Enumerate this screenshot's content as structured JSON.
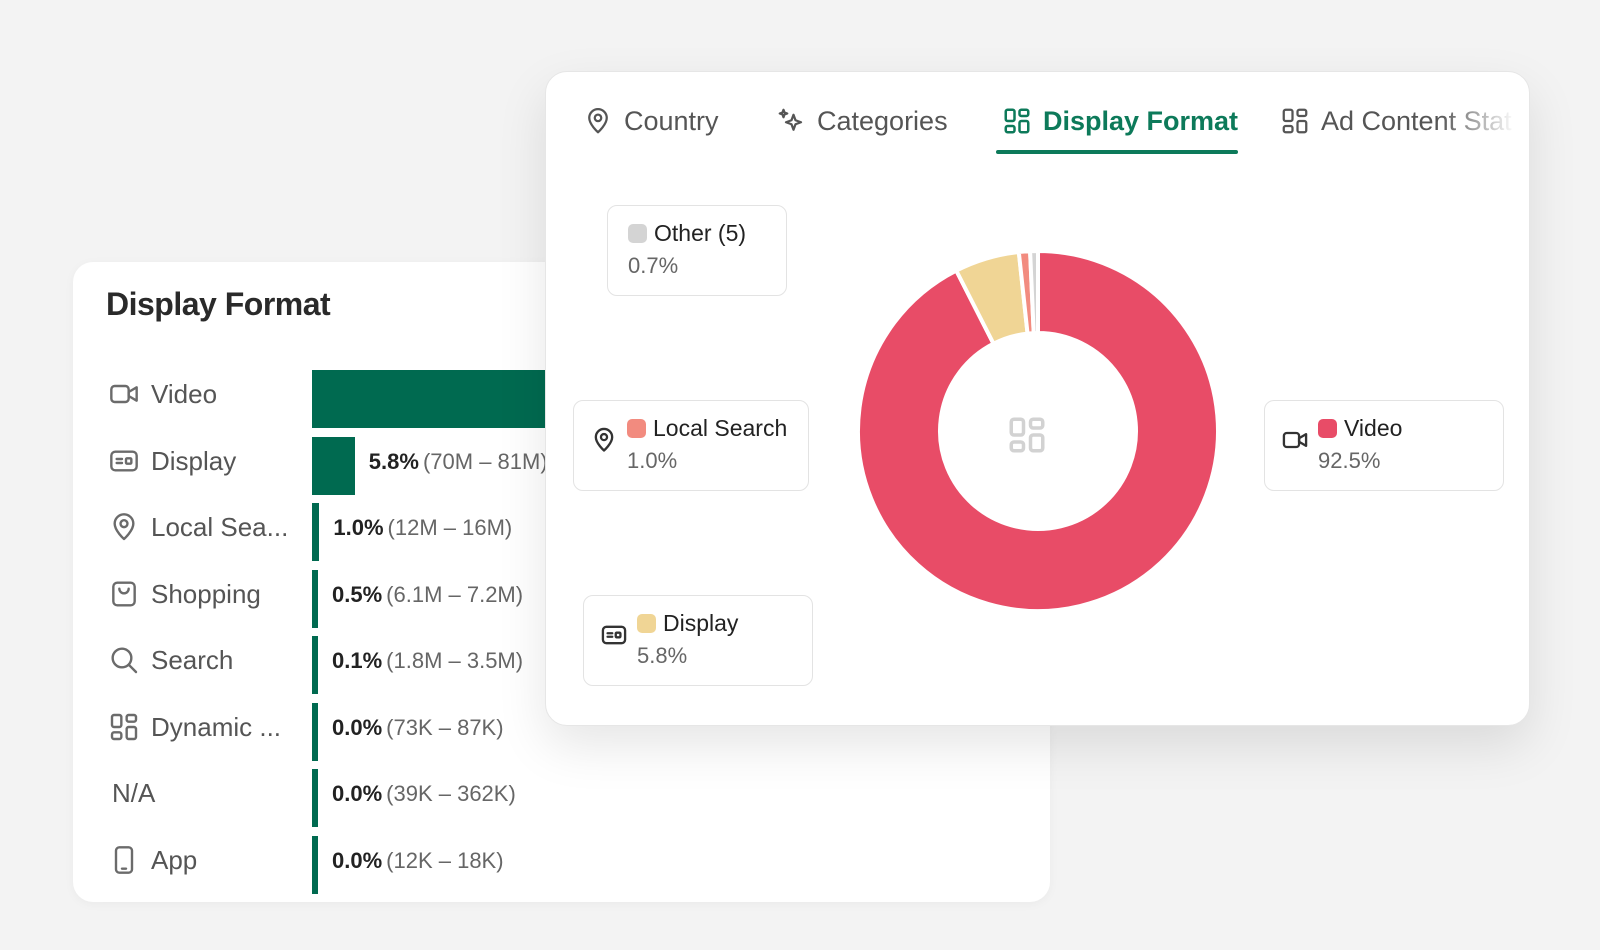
{
  "back_card": {
    "title": "Display Format",
    "rows": [
      {
        "icon": "video-icon",
        "label": "Video",
        "pct": "",
        "range": "",
        "share": 92.5
      },
      {
        "icon": "display-icon",
        "label": "Display",
        "pct": "5.8%",
        "range": "(70M – 81M)",
        "share": 5.8
      },
      {
        "icon": "location-pin-icon",
        "label": "Local Sea...",
        "pct": "1.0%",
        "range": "(12M – 16M)",
        "share": 1.0
      },
      {
        "icon": "shopping-bag-icon",
        "label": "Shopping",
        "pct": "0.5%",
        "range": "(6.1M – 7.2M)",
        "share": 0.5
      },
      {
        "icon": "search-icon",
        "label": "Search",
        "pct": "0.1%",
        "range": "(1.8M – 3.5M)",
        "share": 0.1
      },
      {
        "icon": "layout-grid-icon",
        "label": "Dynamic ...",
        "pct": "0.0%",
        "range": "(73K – 87K)",
        "share": 0.0
      },
      {
        "icon": "",
        "label": "N/A",
        "pct": "0.0%",
        "range": "(39K – 362K)",
        "share": 0.0
      },
      {
        "icon": "mobile-phone-icon",
        "label": "App",
        "pct": "0.0%",
        "range": "(12K – 18K)",
        "share": 0.0
      }
    ],
    "bar_color": "#006a50"
  },
  "front_card": {
    "tabs": [
      {
        "label": "Country",
        "icon": "location-pin-icon",
        "active": false
      },
      {
        "label": "Categories",
        "icon": "sparkles-icon",
        "active": false
      },
      {
        "label": "Display Format",
        "icon": "layout-grid-icon",
        "active": true
      },
      {
        "label": "Ad Content Stat",
        "icon": "layout-grid-icon",
        "active": false
      }
    ],
    "accent_color": "#0d7a5a",
    "legend": [
      {
        "name": "Other (5)",
        "value": "0.7%",
        "color": "#d4d4d4",
        "icon": ""
      },
      {
        "name": "Local Search",
        "value": "1.0%",
        "color": "#f28b7f",
        "icon": "location-pin-icon"
      },
      {
        "name": "Display",
        "value": "5.8%",
        "color": "#f0d595",
        "icon": "display-icon"
      },
      {
        "name": "Video",
        "value": "92.5%",
        "color": "#e84c67",
        "icon": "video-icon"
      }
    ]
  },
  "chart_data": {
    "type": "pie",
    "donut": true,
    "center_icon": "layout-grid-icon",
    "categories": [
      "Video",
      "Display",
      "Local Search",
      "Other (5)"
    ],
    "values": [
      92.5,
      5.8,
      1.0,
      0.7
    ],
    "colors": [
      "#e84c67",
      "#f0d595",
      "#f28b7f",
      "#d4d4d4"
    ]
  }
}
